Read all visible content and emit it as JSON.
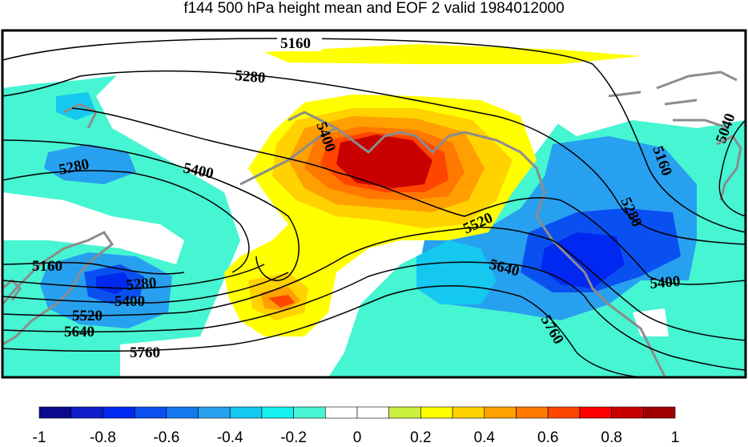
{
  "title": "f144 500 hPa height mean and EOF 2 valid 1984012000",
  "colorbar": {
    "colors": [
      "#0a0a8c",
      "#0d1ec8",
      "#0028f0",
      "#0a50f0",
      "#1478f0",
      "#28a0f0",
      "#14c8f0",
      "#14f0f0",
      "#46f5d2",
      "#ffffff",
      "#ffffff",
      "#c8f03c",
      "#ffff00",
      "#ffd200",
      "#ffa000",
      "#ff7800",
      "#ff4600",
      "#ff0000",
      "#c80000",
      "#a00000"
    ],
    "labels": [
      "-1",
      "-0.8",
      "-0.6",
      "-0.4",
      "-0.2",
      "0",
      "0.2",
      "0.4",
      "0.6",
      "0.8",
      "1"
    ]
  },
  "contour_labels": [
    {
      "text": "5160",
      "name": "contour-label-5160-top"
    },
    {
      "text": "5280",
      "name": "contour-label-5280-upper"
    },
    {
      "text": "5400",
      "name": "contour-label-5400-center"
    },
    {
      "text": "5400",
      "name": "contour-label-5400-left"
    },
    {
      "text": "5280",
      "name": "contour-label-5280-left"
    },
    {
      "text": "5520",
      "name": "contour-label-5520-center"
    },
    {
      "text": "5640",
      "name": "contour-label-5640-center"
    },
    {
      "text": "5160",
      "name": "contour-label-5160-right"
    },
    {
      "text": "5280",
      "name": "contour-label-5280-right"
    },
    {
      "text": "5400",
      "name": "contour-label-5400-right"
    },
    {
      "text": "5760",
      "name": "contour-label-5760-right"
    },
    {
      "text": "5040",
      "name": "contour-label-5040-right"
    },
    {
      "text": "5160",
      "name": "contour-label-5160-lower-left"
    },
    {
      "text": "5280",
      "name": "contour-label-5280-lower-left"
    },
    {
      "text": "5400",
      "name": "contour-label-5400-lower-left"
    },
    {
      "text": "5520",
      "name": "contour-label-5520-lower-left"
    },
    {
      "text": "5640",
      "name": "contour-label-5640-lower-left"
    },
    {
      "text": "5760",
      "name": "contour-label-5760-lower-left"
    }
  ]
}
